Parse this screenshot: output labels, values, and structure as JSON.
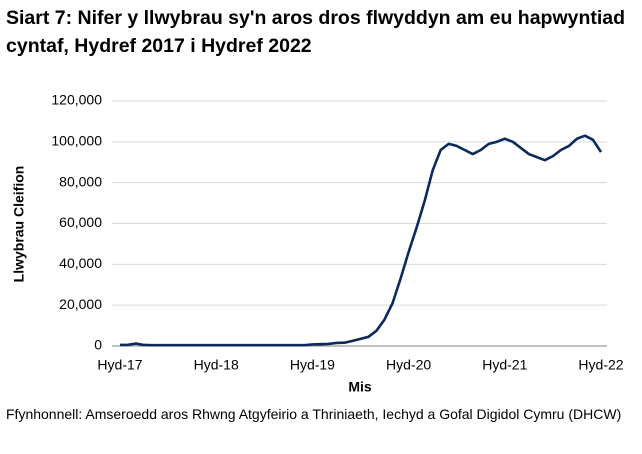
{
  "chart_data": {
    "type": "line",
    "title": "Siart 7: Nifer y llwybrau sy'n aros dros flwyddyn am eu hapwyntiad cyntaf, Hydref 2017 i Hydref 2022",
    "y_label": "Llwybrau Cleifion",
    "x_label": "Mis",
    "source": "Ffynhonnell: Amseroedd aros Rhwng Atgyfeirio a Thriniaeth, Iechyd a Gofal Digidol Cymru (DHCW)",
    "categories": [
      "Hyd-17",
      null,
      null,
      null,
      null,
      null,
      null,
      null,
      null,
      null,
      null,
      null,
      "Hyd-18",
      null,
      null,
      null,
      null,
      null,
      null,
      null,
      null,
      null,
      null,
      null,
      "Hyd-19",
      null,
      null,
      null,
      null,
      null,
      null,
      null,
      null,
      null,
      null,
      null,
      "Hyd-20",
      null,
      null,
      null,
      null,
      null,
      null,
      null,
      null,
      null,
      null,
      null,
      "Hyd-21",
      null,
      null,
      null,
      null,
      null,
      null,
      null,
      null,
      null,
      null,
      null,
      "Hyd-22"
    ],
    "series": [
      {
        "color": "#0b2a5b",
        "values": [
          500,
          600,
          1200,
          500,
          400,
          400,
          400,
          400,
          400,
          400,
          400,
          400,
          400,
          400,
          400,
          400,
          400,
          400,
          400,
          400,
          400,
          400,
          400,
          400,
          800,
          900,
          1000,
          1500,
          1600,
          2500,
          3500,
          4500,
          7500,
          13000,
          21000,
          33000,
          46000,
          58000,
          71000,
          86000,
          96000,
          99000,
          98000,
          96000,
          94000,
          96000,
          99000,
          100000,
          101500,
          100000,
          97000,
          94000,
          92500,
          91000,
          93000,
          96000,
          98000,
          101500,
          103000,
          101000,
          95000
        ]
      }
    ],
    "ylim": [
      0,
      120000
    ],
    "yticks": [
      0,
      {
        "value": 20000,
        "label": "20,000"
      },
      {
        "value": 40000,
        "label": "40,000"
      },
      {
        "value": 60000,
        "label": "60,000"
      },
      {
        "value": 80000,
        "label": "80,000"
      },
      {
        "value": 100000,
        "label": "100,000"
      },
      {
        "value": 120000,
        "label": "120,000"
      }
    ],
    "grid": true
  }
}
